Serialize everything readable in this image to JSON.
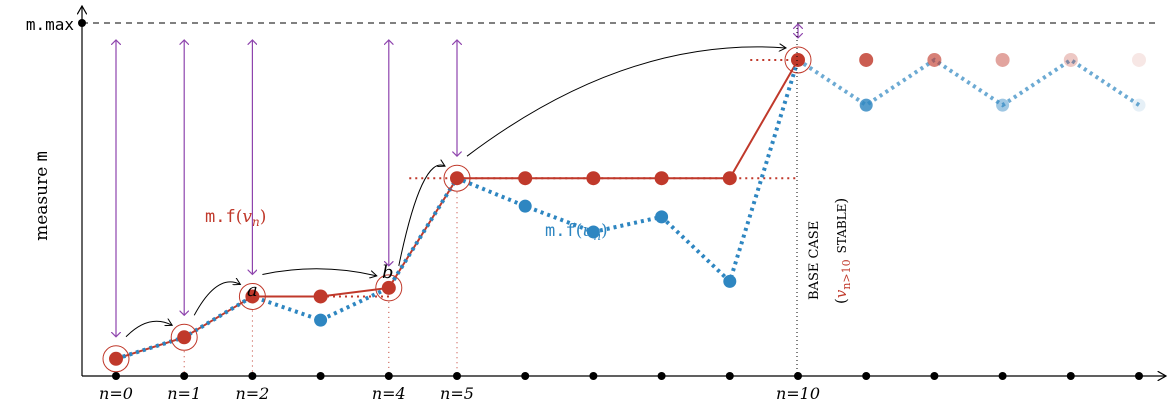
{
  "axis": {
    "ylabel": "measure ",
    "ylabel_mono": "m",
    "ymax_label": "m.max"
  },
  "x_ticks": [
    {
      "n": 0,
      "label": "n=0"
    },
    {
      "n": 1,
      "label": "n=1"
    },
    {
      "n": 2,
      "label": "n=2"
    },
    {
      "n": 4,
      "label": "n=4"
    },
    {
      "n": 5,
      "label": "n=5"
    },
    {
      "n": 10,
      "label": "n=10"
    }
  ],
  "series_v": {
    "label_prefix": "m.f",
    "label_arg": "v",
    "label_sub": "n",
    "color": "#c0392b",
    "values": [
      0.08,
      0.18,
      0.37,
      0.37,
      0.41,
      0.92,
      0.92,
      0.92,
      0.92,
      0.92,
      1.47,
      1.47,
      1.47,
      1.47,
      1.47,
      1.47
    ]
  },
  "series_u": {
    "label_prefix": "m.f",
    "label_arg": "u",
    "label_sub": "n",
    "color": "#2e86c1",
    "values": [
      0.08,
      0.18,
      0.37,
      0.26,
      0.41,
      0.92,
      0.79,
      0.67,
      0.74,
      0.44,
      1.47,
      1.26,
      1.47,
      1.26,
      1.47,
      1.26
    ]
  },
  "point_labels": {
    "a": "a",
    "b": "b"
  },
  "base_case": {
    "line1": "BASE CASE",
    "paren_open": "(",
    "v_sub_label": "v",
    "sub": "n>10",
    "stable": "STABLE",
    "paren_close": ")"
  },
  "colors": {
    "red": "#c0392b",
    "blue": "#2e86c1",
    "purple": "#8e44ad",
    "axis": "#000000"
  }
}
